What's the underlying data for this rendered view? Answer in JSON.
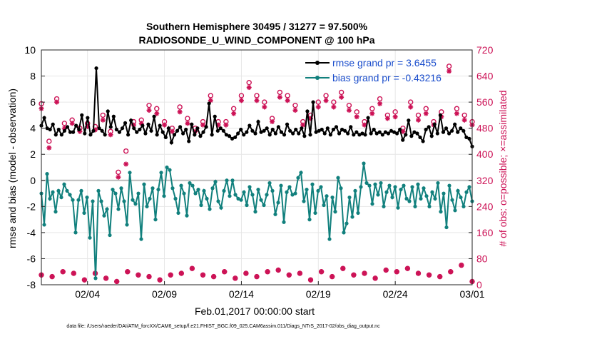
{
  "colors": {
    "rmse": "#000000",
    "bias": "#11807d",
    "obs": "#cc1155",
    "legend_text": "#1a4dcc",
    "zero_line": "#bbbbbb",
    "grid": "#e6e6e6"
  },
  "chart_data": {
    "type": "line",
    "title_line1": "Southern Hemisphere 30495 / 31277 = 97.500%",
    "title_line2": "RADIOSONDE_U_WIND_COMPONENT @ 100 hPa",
    "xlabel": "Feb.01,2017 00:00:00 start",
    "ylabel_left": "rmse and bias (model - observation)",
    "ylabel_right": "# of obs: o=possible; ×=assimilated",
    "footnote": "data file: /Users/raeder/DAI/ATM_forcXX/CAM6_setup/f.e21.FHIST_BGC.f09_025.CAM6assim.011/Diags_NTrS_2017-02/obs_diag_output.nc",
    "x_tick_labels": [
      "02/04",
      "02/09",
      "02/14",
      "02/19",
      "02/24",
      "03/01"
    ],
    "x_tick_days": [
      3,
      8,
      13,
      18,
      23,
      28
    ],
    "xlim_days": [
      0,
      28
    ],
    "ylim_left": [
      -8,
      10
    ],
    "yticks_left": [
      -8,
      -6,
      -4,
      -2,
      0,
      2,
      4,
      6,
      8,
      10
    ],
    "ylim_right": [
      0,
      720
    ],
    "yticks_right": [
      0,
      80,
      160,
      240,
      320,
      400,
      480,
      560,
      640,
      720
    ],
    "legend": {
      "position": "top-right",
      "entries": [
        "rmse grand pr = 3.6455",
        "bias grand pr = -0.43216"
      ]
    },
    "series": [
      {
        "name": "rmse",
        "values": [
          4.2,
          4.8,
          4.0,
          3.9,
          4.3,
          3.5,
          3.9,
          3.5,
          3.8,
          4.1,
          3.7,
          3.7,
          4.2,
          3.9,
          5.0,
          3.6,
          4.8,
          3.5,
          3.8,
          8.6,
          4.0,
          3.8,
          3.5,
          5.3,
          4.1,
          4.9,
          3.9,
          3.7,
          4.0,
          4.4,
          3.5,
          4.6,
          4.0,
          3.7,
          3.9,
          4.2,
          3.6,
          4.3,
          3.8,
          4.9,
          3.5,
          4.2,
          3.7,
          3.3,
          4.0,
          2.9,
          3.5,
          3.8,
          4.1,
          3.6,
          3.9,
          3.0,
          4.3,
          3.5,
          4.0,
          3.4,
          3.7,
          4.1,
          5.9,
          3.5,
          4.9,
          3.8,
          4.0,
          3.8,
          3.5,
          3.4,
          3.2,
          3.3,
          3.6,
          3.9,
          3.5,
          3.7,
          4.2,
          3.8,
          3.6,
          4.5,
          3.7,
          3.8,
          4.0,
          3.5,
          3.9,
          3.6,
          4.1,
          3.7,
          3.5,
          4.3,
          3.8,
          3.6,
          3.9,
          3.6,
          4.0,
          3.4,
          5.3,
          3.5,
          6.0,
          3.7,
          3.8,
          3.9,
          3.6,
          4.0,
          3.5,
          3.9,
          4.1,
          3.6,
          3.9,
          3.8,
          3.6,
          4.1,
          3.5,
          3.7,
          3.5,
          3.6,
          3.5,
          4.8,
          3.6,
          3.9,
          3.6,
          3.7,
          3.5,
          3.7,
          3.6,
          3.8,
          3.7,
          3.6,
          3.9,
          3.1,
          3.5,
          4.6,
          3.4,
          3.7,
          3.6,
          3.3,
          3.0,
          3.9,
          4.1,
          3.4,
          4.3,
          3.6,
          5.0,
          3.7,
          4.0,
          3.6,
          3.8,
          4.3,
          3.7,
          4.0,
          3.8,
          3.3,
          3.2,
          2.6
        ],
        "unit": "left-axis"
      },
      {
        "name": "bias",
        "values": [
          -1.0,
          -3.4,
          0.5,
          -1.4,
          -0.9,
          -2.4,
          -0.8,
          -1.3,
          -0.3,
          -0.8,
          -1.1,
          -1.5,
          -4.0,
          -1.5,
          -0.8,
          -2.5,
          -1.3,
          -4.4,
          -1.6,
          -7.5,
          -0.8,
          -1.6,
          -2.7,
          -2.2,
          -4.2,
          -0.7,
          -1.0,
          -2.2,
          -0.6,
          -1.6,
          -3.4,
          0.6,
          -1.5,
          -1.8,
          -1.0,
          -4.5,
          -0.3,
          -2.0,
          -1.4,
          -0.6,
          -3.0,
          -0.7,
          0.6,
          -1.2,
          1.0,
          0.8,
          -0.6,
          -1.4,
          -2.5,
          -0.4,
          -1.0,
          -2.7,
          -0.2,
          -0.4,
          -1.0,
          -0.7,
          -1.9,
          -0.8,
          -1.4,
          -2.2,
          -0.6,
          -0.1,
          -1.6,
          -2.1,
          -0.8,
          0.0,
          -1.2,
          0.0,
          -1.1,
          -1.4,
          -1.5,
          -0.9,
          -1.9,
          -0.5,
          -1.1,
          -2.4,
          -0.7,
          -1.5,
          -1.9,
          -1.1,
          -0.2,
          -0.8,
          -2.6,
          -1.7,
          -0.4,
          -3.2,
          -0.9,
          -0.5,
          -1.1,
          -1.0,
          0.2,
          0.6,
          -1.6,
          -0.7,
          -3.0,
          -0.3,
          -2.5,
          -0.8,
          -0.5,
          -1.9,
          -1.2,
          -4.5,
          -1.3,
          -2.4,
          0.2,
          -0.6,
          -4.0,
          -3.3,
          -1.3,
          -2.8,
          -0.8,
          -2.5,
          -0.5,
          1.3,
          -0.2,
          -0.4,
          -1.8,
          -0.3,
          -1.1,
          -0.2,
          -2.0,
          -0.9,
          -0.4,
          -1.3,
          -0.5,
          -2.1,
          -0.7,
          -0.4,
          -1.4,
          -1.6,
          -0.5,
          -2.0,
          -0.3,
          -1.4,
          -0.6,
          -1.2,
          -2.0,
          -0.9,
          -1.4,
          -0.2,
          -2.4,
          -1.0,
          -3.6,
          -0.4,
          -1.5,
          -2.3,
          -0.8,
          -1.3,
          -2.0,
          -0.9,
          -0.5,
          -1.6
        ],
        "unit": "left-axis"
      },
      {
        "name": "obs possible",
        "x_days": [
          0,
          0.5,
          1,
          1.5,
          2,
          2.5,
          3,
          3.5,
          4,
          4.5,
          5,
          5.5,
          6,
          6.5,
          7,
          7.5,
          8,
          8.5,
          9,
          9.5,
          10,
          10.5,
          11,
          11.5,
          12,
          12.5,
          13,
          13.5,
          14,
          14.5,
          15,
          15.5,
          16,
          16.5,
          17,
          17.5,
          18,
          18.5,
          19,
          19.5,
          20,
          20.5,
          21,
          21.5,
          22,
          22.5,
          23,
          23.5,
          24,
          24.5,
          25,
          25.5,
          26,
          26.5,
          27,
          27.5,
          28
        ],
        "values": [
          555,
          440,
          570,
          495,
          505,
          480,
          495,
          485,
          520,
          470,
          345,
          410,
          500,
          505,
          550,
          540,
          500,
          480,
          545,
          510,
          480,
          500,
          580,
          500,
          500,
          540,
          580,
          620,
          580,
          560,
          510,
          590,
          580,
          550,
          500,
          520,
          560,
          580,
          560,
          590,
          550,
          530,
          500,
          540,
          570,
          520,
          530,
          480,
          560,
          520,
          540,
          500,
          530,
          670,
          540,
          520,
          500
        ],
        "unit": "right-axis"
      },
      {
        "name": "obs assimilated",
        "x_days": [
          0,
          0.5,
          1,
          1.5,
          2,
          2.5,
          3,
          3.5,
          4,
          4.5,
          5,
          5.5,
          6,
          6.5,
          7,
          7.5,
          8,
          8.5,
          9,
          9.5,
          10,
          10.5,
          11,
          11.5,
          12,
          12.5,
          13,
          13.5,
          14,
          14.5,
          15,
          15.5,
          16,
          16.5,
          17,
          17.5,
          18,
          18.5,
          19,
          19.5,
          20,
          20.5,
          21,
          21.5,
          22,
          22.5,
          23,
          23.5,
          24,
          24.5,
          25,
          25.5,
          26,
          26.5,
          27,
          27.5,
          28
        ],
        "values": [
          540,
          420,
          560,
          480,
          495,
          470,
          485,
          475,
          505,
          460,
          330,
          370,
          490,
          495,
          535,
          525,
          490,
          470,
          530,
          495,
          470,
          490,
          565,
          490,
          490,
          525,
          565,
          605,
          565,
          545,
          500,
          575,
          565,
          535,
          490,
          510,
          545,
          565,
          545,
          575,
          535,
          515,
          490,
          525,
          555,
          510,
          515,
          470,
          545,
          505,
          525,
          490,
          515,
          655,
          525,
          505,
          490
        ],
        "unit": "right-axis"
      },
      {
        "name": "obs low possible",
        "x_days": [
          0,
          0.7,
          1.4,
          2.1,
          2.8,
          3.5,
          4.2,
          4.9,
          5.6,
          6.3,
          7,
          7.7,
          8.4,
          9.1,
          9.8,
          10.5,
          11.2,
          11.9,
          12.6,
          13.3,
          14,
          14.7,
          15.4,
          16.1,
          16.8,
          17.5,
          18.2,
          18.9,
          19.6,
          20.3,
          21,
          21.7,
          22.4,
          23.1,
          23.8,
          24.5,
          25.2,
          25.9,
          26.6,
          27.3,
          28
        ],
        "values": [
          30,
          25,
          40,
          35,
          15,
          35,
          20,
          10,
          40,
          30,
          25,
          15,
          30,
          35,
          50,
          30,
          25,
          40,
          20,
          35,
          25,
          40,
          45,
          30,
          35,
          15,
          40,
          25,
          50,
          30,
          35,
          20,
          45,
          40,
          50,
          35,
          30,
          25,
          40,
          60,
          10
        ],
        "unit": "right-axis"
      }
    ]
  }
}
